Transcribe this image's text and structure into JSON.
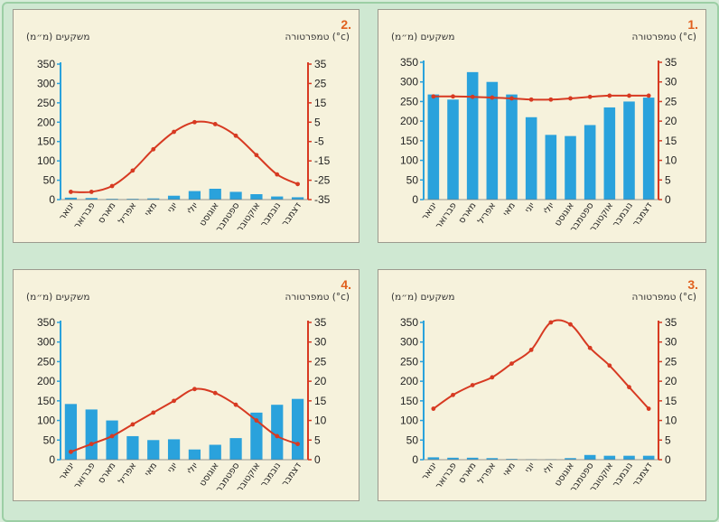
{
  "colors": {
    "bar": "#2aa2dc",
    "line": "#d73a22",
    "left_axis": "#2aa2dc",
    "right_axis": "#d73a22"
  },
  "chart_data": [
    {
      "id": "1",
      "label": "1.",
      "type": "bar+line",
      "categories": [
        "ינואר",
        "פברואר",
        "מארס",
        "אפריל",
        "מאי",
        "יוני",
        "יולי",
        "אוגוסט",
        "ספטמבר",
        "אוקטובר",
        "נובמבר",
        "דצמבר"
      ],
      "ylabel_left": "משקעים (מ״מ)",
      "ylabel_right": "טמפרטורה (°c)",
      "ylim_left": [
        0,
        350
      ],
      "ylim_right": [
        0,
        35
      ],
      "yticks_left": [
        0,
        50,
        100,
        150,
        200,
        250,
        300,
        350
      ],
      "yticks_right": [
        0,
        5,
        10,
        15,
        20,
        25,
        30,
        35
      ],
      "bars": [
        268,
        255,
        325,
        300,
        268,
        210,
        165,
        162,
        190,
        235,
        250,
        260
      ],
      "line": [
        26.3,
        26.3,
        26.2,
        26.0,
        25.8,
        25.5,
        25.5,
        25.8,
        26.2,
        26.5,
        26.5,
        26.5
      ]
    },
    {
      "id": "2",
      "label": "2.",
      "type": "bar+line",
      "categories": [
        "ינואר",
        "פברואר",
        "מארס",
        "אפריל",
        "מאי",
        "יוני",
        "יולי",
        "אוגוסט",
        "ספטמבר",
        "אוקטובר",
        "נובמבר",
        "דצמבר"
      ],
      "ylabel_left": "משקעים (מ״מ)",
      "ylabel_right": "טמפרטורה (°c)",
      "ylim_left": [
        0,
        350
      ],
      "ylim_right": [
        -35,
        35
      ],
      "yticks_left": [
        0,
        50,
        100,
        150,
        200,
        250,
        300,
        350
      ],
      "yticks_right": [
        -35,
        -25,
        -15,
        -5,
        5,
        15,
        25,
        35
      ],
      "bars": [
        5,
        4,
        2,
        2,
        3,
        10,
        22,
        28,
        20,
        14,
        8,
        6
      ],
      "line": [
        -31,
        -31,
        -28,
        -20,
        -9,
        0,
        5,
        4,
        -2,
        -12,
        -22,
        -27
      ]
    },
    {
      "id": "3",
      "label": "3.",
      "type": "bar+line",
      "categories": [
        "ינואר",
        "פברואר",
        "מארס",
        "אפריל",
        "מאי",
        "יוני",
        "יולי",
        "אוגוסט",
        "ספטמבר",
        "אוקטובר",
        "נובמבר",
        "דצמבר"
      ],
      "ylabel_left": "משקעים (מ״מ)",
      "ylabel_right": "טמפרטורה (°c)",
      "ylim_left": [
        0,
        350
      ],
      "ylim_right": [
        0,
        35
      ],
      "yticks_left": [
        0,
        50,
        100,
        150,
        200,
        250,
        300,
        350
      ],
      "yticks_right": [
        0,
        5,
        10,
        15,
        20,
        25,
        30,
        35
      ],
      "bars": [
        6,
        5,
        5,
        4,
        2,
        1,
        1,
        4,
        12,
        10,
        10,
        10
      ],
      "line": [
        13,
        16.5,
        19,
        21,
        24.5,
        28,
        35,
        34.5,
        28.5,
        24,
        18.5,
        13
      ]
    },
    {
      "id": "4",
      "label": "4.",
      "type": "bar+line",
      "categories": [
        "ינואר",
        "פברואר",
        "מארס",
        "אפריל",
        "מאי",
        "יוני",
        "יולי",
        "אוגוסט",
        "ספטמבר",
        "אוקטובר",
        "נובמבר",
        "דצמבר"
      ],
      "ylabel_left": "משקעים (מ״מ)",
      "ylabel_right": "טמפרטורה (°c)",
      "ylim_left": [
        0,
        350
      ],
      "ylim_right": [
        0,
        35
      ],
      "yticks_left": [
        0,
        50,
        100,
        150,
        200,
        250,
        300,
        350
      ],
      "yticks_right": [
        0,
        5,
        10,
        15,
        20,
        25,
        30,
        35
      ],
      "bars": [
        142,
        128,
        100,
        60,
        50,
        52,
        26,
        38,
        55,
        120,
        140,
        155
      ],
      "line": [
        2,
        4,
        6,
        9,
        12,
        15,
        18,
        17,
        14,
        10,
        6,
        4
      ]
    }
  ]
}
